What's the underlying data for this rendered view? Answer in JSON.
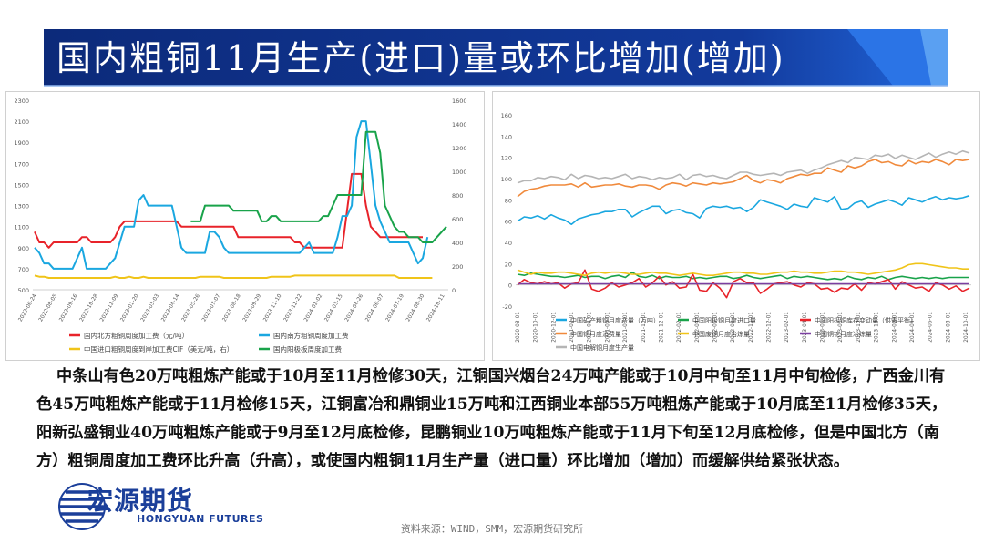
{
  "title": "国内粗铜11月生产(进口)量或环比增加(增加)",
  "colors": {
    "title_bg": "#0c2a7a",
    "accent": "#1f5fd1",
    "logo": "#1b3f9a"
  },
  "chart_data": [
    {
      "type": "line",
      "y_left_ticks": [
        "2300",
        "2100",
        "1900",
        "1700",
        "1500",
        "1300",
        "1100",
        "900",
        "700",
        "500"
      ],
      "y_right_ticks": [
        "1600",
        "1400",
        "1200",
        "1000",
        "800",
        "600",
        "400",
        "200",
        "0"
      ],
      "ylim_left": [
        500,
        2300
      ],
      "ylim_right": [
        0,
        1600
      ],
      "x_ticks": [
        "2022-06-24",
        "2022-08-05",
        "2022-09-16",
        "2022-10-28",
        "2022-12-09",
        "2023-01-20",
        "2023-03-03",
        "2023-04-14",
        "2023-05-26",
        "2023-07-07",
        "2023-08-18",
        "2023-09-29",
        "2023-11-10",
        "2023-12-22",
        "2024-02-02",
        "2024-03-15",
        "2024-04-26",
        "2024-06-07",
        "2024-07-19",
        "2024-08-30",
        "2024-10-11"
      ],
      "series": [
        {
          "name": "国内北方粗铜周度加工费（元/吨）",
          "color": "#e8232a",
          "axis": "left",
          "values": [
            1050,
            950,
            950,
            900,
            950,
            950,
            950,
            950,
            950,
            950,
            1000,
            1000,
            950,
            950,
            950,
            950,
            950,
            1000,
            1100,
            1150,
            1150,
            1150,
            1150,
            1150,
            1150,
            1150,
            1150,
            1150,
            1150,
            1150,
            1150,
            1100,
            1100,
            1100,
            1100,
            1100,
            1100,
            1100,
            1100,
            1100,
            1100,
            1100,
            1100,
            1000,
            1000,
            1000,
            1000,
            1000,
            1000,
            1000,
            1000,
            1000,
            1000,
            1000,
            1000,
            950,
            950,
            900,
            900,
            900,
            900,
            900,
            900,
            900,
            900,
            900,
            1250,
            1600,
            1600,
            1600,
            1300,
            1100,
            1050,
            1000,
            1000,
            1000,
            1000,
            1000,
            1000,
            1000,
            1000,
            1000,
            1000
          ]
        },
        {
          "name": "国内南方粗铜周度加工费",
          "color": "#1aa7e0",
          "axis": "left",
          "values": [
            900,
            850,
            750,
            750,
            700,
            700,
            700,
            700,
            700,
            800,
            900,
            700,
            700,
            700,
            700,
            700,
            750,
            800,
            950,
            1100,
            1100,
            1100,
            1350,
            1400,
            1300,
            1300,
            1300,
            1300,
            1300,
            1300,
            1100,
            900,
            850,
            850,
            850,
            850,
            850,
            1050,
            1050,
            1000,
            900,
            850,
            850,
            850,
            850,
            850,
            850,
            850,
            850,
            850,
            850,
            850,
            850,
            850,
            850,
            850,
            850,
            900,
            950,
            850,
            850,
            850,
            850,
            850,
            1000,
            1200,
            1200,
            1300,
            1950,
            2100,
            2100,
            1700,
            1300,
            1150,
            1050,
            950,
            950,
            950,
            950,
            950,
            850,
            750,
            800,
            1000
          ]
        },
        {
          "name": "中国进口粗铜周度到岸加工费CIF（美元/吨，右）",
          "color": "#f0c419",
          "axis": "right",
          "values": [
            120,
            110,
            110,
            100,
            100,
            100,
            100,
            100,
            100,
            100,
            100,
            100,
            100,
            100,
            100,
            100,
            100,
            110,
            100,
            100,
            110,
            100,
            100,
            110,
            100,
            100,
            100,
            100,
            100,
            100,
            100,
            100,
            100,
            100,
            100,
            110,
            110,
            110,
            110,
            110,
            100,
            100,
            100,
            100,
            100,
            100,
            100,
            100,
            100,
            100,
            110,
            110,
            110,
            110,
            110,
            120,
            120,
            120,
            120,
            120,
            120,
            120,
            120,
            120,
            120,
            120,
            120,
            120,
            120,
            120,
            120,
            120,
            120,
            120,
            120,
            120,
            120,
            100,
            100,
            100,
            100,
            100,
            100,
            100,
            100
          ]
        },
        {
          "name": "国内阳极板周度加工费",
          "color": "#19a34a",
          "axis": "left",
          "start_index": 33,
          "values": [
            1150,
            1150,
            1150,
            1300,
            1300,
            1300,
            1300,
            1300,
            1300,
            1250,
            1250,
            1250,
            1250,
            1250,
            1250,
            1150,
            1150,
            1200,
            1200,
            1150,
            1150,
            1150,
            1150,
            1150,
            1150,
            1150,
            1150,
            1150,
            1200,
            1200,
            1300,
            1400,
            1400,
            1400,
            1400,
            1400,
            1400,
            2000,
            2000,
            2000,
            1800,
            1300,
            1200,
            1100,
            1050,
            1050,
            1000,
            1000,
            1000,
            950,
            950,
            950,
            1000,
            1050,
            1100
          ]
        }
      ]
    },
    {
      "type": "line",
      "y_ticks": [
        "160",
        "140",
        "120",
        "100",
        "80",
        "60",
        "40",
        "20",
        "0",
        "-20"
      ],
      "ylim": [
        -20,
        160
      ],
      "x_ticks": [
        "2020-08-01",
        "2020-10-01",
        "2020-12-01",
        "2021-02-01",
        "2021-04-01",
        "2021-06-01",
        "2021-08-01",
        "2021-10-01",
        "2021-12-01",
        "2022-02-01",
        "2022-04-01",
        "2022-06-01",
        "2022-08-01",
        "2022-10-01",
        "2022-12-01",
        "2023-02-01",
        "2023-04-01",
        "2023-06-01",
        "2023-08-01",
        "2023-10-01",
        "2023-12-01",
        "2024-02-01",
        "2024-04-01",
        "2024-06-01",
        "2024-08-01",
        "2024-10-01"
      ],
      "series": [
        {
          "name": "中国矿产粗铜月度产量（万吨）",
          "color": "#1aa7e0",
          "values": [
            60,
            64,
            63,
            65,
            62,
            66,
            63,
            61,
            57,
            62,
            64,
            66,
            67,
            69,
            69,
            71,
            71,
            64,
            68,
            71,
            74,
            74,
            67,
            70,
            71,
            68,
            67,
            63,
            72,
            74,
            73,
            74,
            72,
            73,
            69,
            73,
            80,
            78,
            76,
            74,
            71,
            76,
            74,
            73,
            82,
            80,
            78,
            83,
            71,
            72,
            77,
            79,
            73,
            76,
            78,
            80,
            78,
            75,
            82,
            80,
            78,
            81,
            83,
            80,
            82,
            81,
            82,
            84
          ]
        },
        {
          "name": "中国阳极铜月度进口量",
          "color": "#19a34a",
          "values": [
            10,
            9,
            11,
            10,
            9,
            8,
            8,
            7,
            8,
            9,
            7,
            8,
            8,
            6,
            8,
            9,
            7,
            12,
            8,
            7,
            9,
            6,
            8,
            7,
            7,
            8,
            6,
            7,
            6,
            7,
            8,
            8,
            6,
            7,
            9,
            7,
            6,
            7,
            8,
            9,
            6,
            8,
            7,
            8,
            7,
            6,
            5,
            6,
            5,
            8,
            6,
            5,
            7,
            6,
            8,
            5,
            7,
            8,
            7,
            6,
            7,
            6,
            7,
            6,
            7,
            7,
            7,
            7
          ]
        },
        {
          "name": "中国阳极铜库存变动量（供需平衡）",
          "color": "#e8232a",
          "values": [
            0,
            5,
            2,
            1,
            3,
            1,
            2,
            -3,
            1,
            2,
            14,
            -4,
            -6,
            -3,
            2,
            -2,
            0,
            2,
            6,
            -2,
            2,
            8,
            0,
            3,
            -3,
            -2,
            10,
            -5,
            -6,
            2,
            -3,
            -12,
            3,
            6,
            2,
            2,
            -8,
            -4,
            1,
            2,
            3,
            0,
            -2,
            2,
            1,
            -4,
            -3,
            -7,
            -3,
            -4,
            1,
            -5,
            2,
            1,
            3,
            5,
            -4,
            3,
            0,
            -3,
            -2,
            -6,
            2,
            0,
            -4,
            -1,
            -6,
            -3
          ]
        },
        {
          "name": "中国铜月度消费量",
          "color": "#f08a3c",
          "values": [
            83,
            88,
            90,
            91,
            93,
            94,
            94,
            94,
            95,
            92,
            96,
            92,
            93,
            94,
            94,
            95,
            93,
            92,
            94,
            94,
            93,
            90,
            94,
            96,
            95,
            93,
            96,
            95,
            94,
            96,
            95,
            96,
            97,
            100,
            103,
            98,
            96,
            99,
            98,
            96,
            100,
            102,
            104,
            103,
            105,
            105,
            110,
            108,
            106,
            112,
            110,
            112,
            116,
            118,
            115,
            116,
            113,
            112,
            117,
            114,
            116,
            115,
            118,
            116,
            113,
            118,
            117,
            118
          ]
        },
        {
          "name": "中国废铜月度冶炼量",
          "color": "#f0c419",
          "values": [
            14,
            12,
            10,
            12,
            11,
            11,
            12,
            12,
            11,
            10,
            9,
            11,
            12,
            11,
            12,
            12,
            11,
            10,
            10,
            11,
            12,
            11,
            11,
            10,
            9,
            10,
            11,
            10,
            9,
            9,
            10,
            11,
            12,
            12,
            11,
            11,
            10,
            10,
            11,
            12,
            12,
            13,
            12,
            12,
            11,
            11,
            12,
            13,
            13,
            12,
            12,
            11,
            10,
            11,
            12,
            13,
            14,
            16,
            19,
            20,
            20,
            19,
            18,
            17,
            16,
            16,
            15,
            15
          ]
        },
        {
          "name": "中国铜铊月度冶炼量",
          "color": "#7b3fa0",
          "values": [
            1,
            1,
            1,
            1,
            1,
            1,
            1,
            1,
            1,
            1,
            1,
            1,
            1,
            1,
            1,
            1,
            1,
            1,
            1,
            1,
            1,
            1,
            1,
            1,
            1,
            1,
            1,
            1,
            1,
            1,
            1,
            1,
            1,
            1,
            1,
            1,
            1,
            1,
            1,
            1,
            1,
            1,
            1,
            1,
            1,
            1,
            1,
            1,
            1,
            1,
            1,
            1,
            1,
            1,
            1,
            1,
            1,
            1,
            1,
            1,
            1,
            1,
            1,
            1,
            1,
            1,
            1,
            1
          ]
        },
        {
          "name": "中国电解铜月度生产量",
          "color": "#b5b5b5",
          "values": [
            96,
            98,
            98,
            101,
            100,
            102,
            101,
            99,
            104,
            100,
            103,
            102,
            100,
            101,
            100,
            102,
            104,
            100,
            102,
            101,
            99,
            101,
            100,
            101,
            104,
            99,
            103,
            104,
            102,
            103,
            101,
            100,
            103,
            106,
            106,
            104,
            103,
            104,
            105,
            103,
            106,
            107,
            108,
            105,
            108,
            110,
            113,
            115,
            117,
            115,
            120,
            119,
            118,
            122,
            121,
            123,
            119,
            122,
            120,
            118,
            121,
            124,
            120,
            123,
            125,
            123,
            126,
            124
          ]
        }
      ]
    }
  ],
  "body_text": "中条山有色20万吨粗炼产能或于10月至11月检修30天，江铜国兴烟台24万吨产能或于10月中旬至11月中旬检修，广西金川有色45万吨粗炼产能或于11月检修15天，江铜富冶和鼎铜业15万吨和江西铜业本部55万吨粗炼产能或于10月底至11月检修35天，阳新弘盛铜业40万吨粗炼产能或于9月至12月底检修，昆鹏铜业10万吨粗炼产能或于11月下旬至12月底检修，但是中国北方（南方）粗铜周度加工费环比升高（升高），或使国内粗铜11月生产量（进口量）环比增加（增加）而缓解供给紧张状态。",
  "logo": {
    "cn": "宏源期货",
    "en": "HONGYUAN FUTURES",
    "icon": "globe-logo-icon"
  },
  "source": "资料来源：WIND，SMM，宏源期货研究所"
}
